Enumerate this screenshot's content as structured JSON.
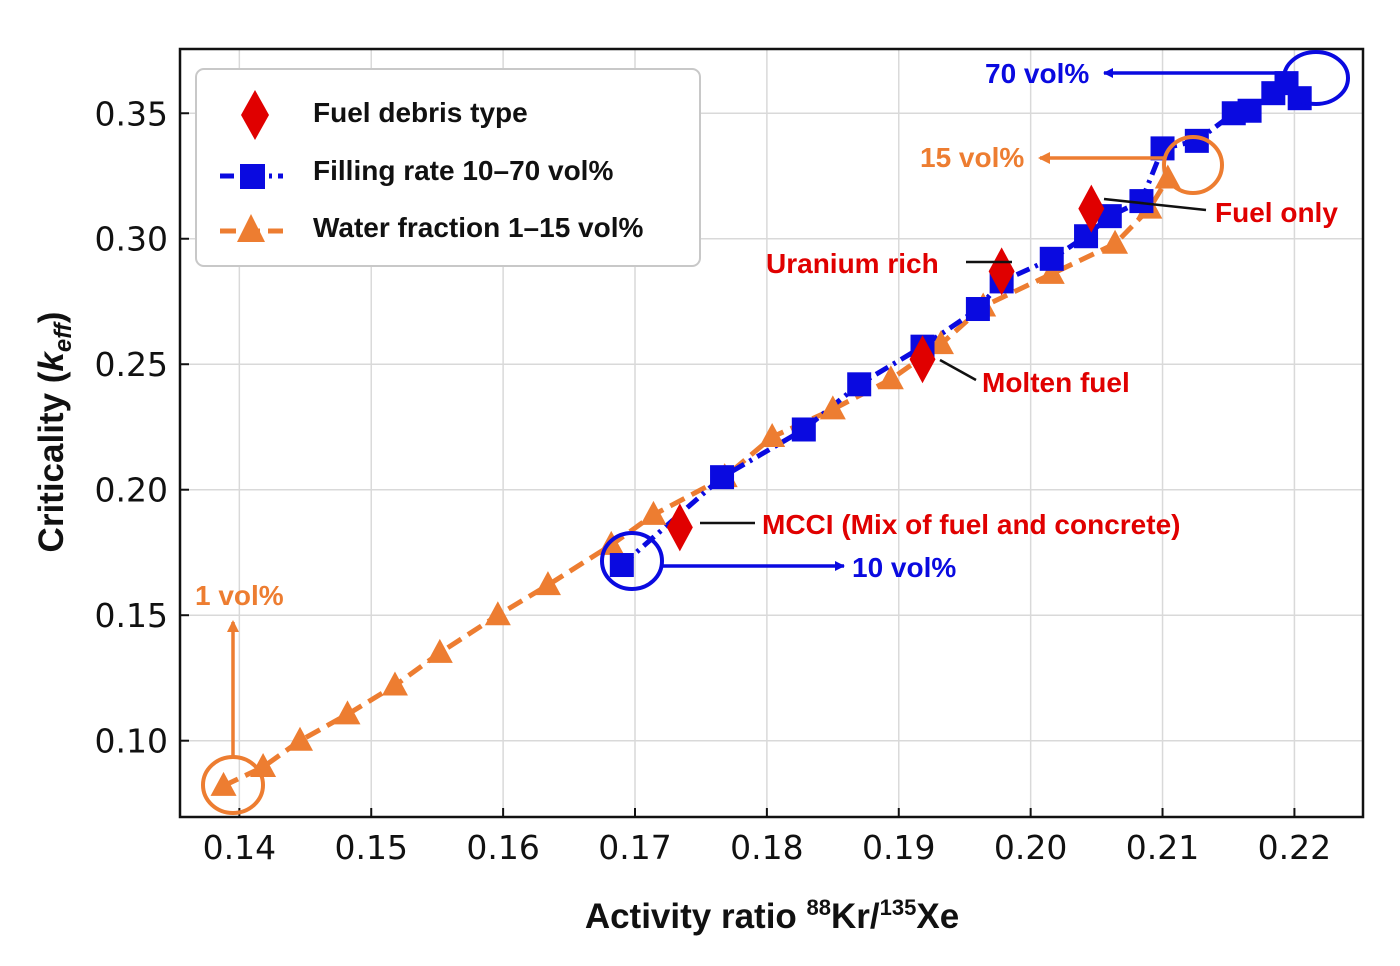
{
  "chart_data": {
    "type": "scatter",
    "xlabel_prefix": "Activity ratio ",
    "xlabel_num_iso": "88",
    "xlabel_num_elem": "Kr/",
    "xlabel_den_iso": "135",
    "xlabel_den_elem": "Xe",
    "ylabel_main": "Criticality (",
    "ylabel_var": "k",
    "ylabel_sub": "eff",
    "ylabel_close": ")",
    "xlim": [
      0.1355,
      0.2252
    ],
    "ylim": [
      0.0696,
      0.3756
    ],
    "xticks": [
      0.14,
      0.15,
      0.16,
      0.17,
      0.18,
      0.19,
      0.2,
      0.21,
      0.22
    ],
    "xtick_labels": [
      "0.14",
      "0.15",
      "0.16",
      "0.17",
      "0.18",
      "0.19",
      "0.20",
      "0.21",
      "0.22"
    ],
    "yticks": [
      0.1,
      0.15,
      0.2,
      0.25,
      0.3,
      0.35
    ],
    "ytick_labels": [
      "0.10",
      "0.15",
      "0.20",
      "0.25",
      "0.30",
      "0.35"
    ],
    "grid": true,
    "legend": {
      "position": "top-left",
      "entries": [
        "Fuel debris type",
        "Filling rate 10–70 vol%",
        "Water fraction 1–15 vol%"
      ]
    },
    "series": [
      {
        "name": "Water fraction 1–15 vol%",
        "color": "#ED7D31",
        "marker": "triangle",
        "line": "dashed",
        "x": [
          0.1388,
          0.1418,
          0.1446,
          0.1482,
          0.1518,
          0.1552,
          0.1596,
          0.1634,
          0.1682,
          0.1714,
          0.1768,
          0.1804,
          0.185,
          0.1894,
          0.1932,
          0.1964,
          0.2016,
          0.2064,
          0.209,
          0.2104
        ],
        "y": [
          0.082,
          0.0895,
          0.1,
          0.1105,
          0.122,
          0.135,
          0.15,
          0.162,
          0.178,
          0.19,
          0.205,
          0.221,
          0.232,
          0.244,
          0.258,
          0.273,
          0.286,
          0.298,
          0.312,
          0.324
        ]
      },
      {
        "name": "Filling rate 10–70 vol%",
        "color": "#0A0AE0",
        "marker": "square",
        "line": "dashdot",
        "x": [
          0.169,
          0.1766,
          0.1828,
          0.187,
          0.1918,
          0.196,
          0.1978,
          0.2016,
          0.2042,
          0.206,
          0.2084,
          0.21,
          0.2126,
          0.2154,
          0.2166,
          0.2184,
          0.2194,
          0.2204
        ],
        "y": [
          0.17,
          0.205,
          0.224,
          0.242,
          0.257,
          0.272,
          0.283,
          0.292,
          0.301,
          0.309,
          0.315,
          0.336,
          0.339,
          0.35,
          0.351,
          0.358,
          0.362,
          0.356
        ]
      },
      {
        "name": "Fuel debris type",
        "color": "#E00000",
        "marker": "diamond",
        "line": "none",
        "x": [
          0.1734,
          0.1918,
          0.1978,
          0.2046
        ],
        "y": [
          0.185,
          0.252,
          0.287,
          0.312
        ]
      }
    ],
    "annotations": [
      {
        "text": "70 vol%",
        "color": "#0A0AE0"
      },
      {
        "text": "15 vol%",
        "color": "#ED7D31"
      },
      {
        "text": "Fuel only",
        "color": "#E00000"
      },
      {
        "text": "Uranium rich",
        "color": "#E00000"
      },
      {
        "text": "Molten fuel",
        "color": "#E00000"
      },
      {
        "text": "MCCI (Mix of fuel and concrete)",
        "color": "#E00000"
      },
      {
        "text": "10 vol%",
        "color": "#0A0AE0"
      },
      {
        "text": "1 vol%",
        "color": "#ED7D31"
      }
    ]
  }
}
